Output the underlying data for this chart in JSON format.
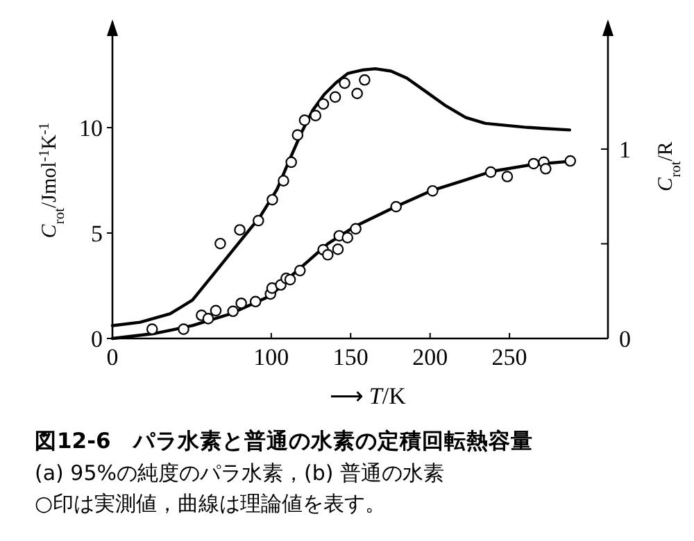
{
  "chart_data": {
    "type": "line",
    "title": "図12-6　パラ水素と普通の水素の定積回転熱容量",
    "annotations": [
      "(a) 95%の純度のパラ水素，(b) 普通の水素",
      "○印は実測値，曲線は理論値を表す。"
    ],
    "xlabel": "⟶ *T*/K",
    "ylabel": "*C*$_{rot}$/Jmol$^{-1}$K$^{-1}$",
    "y2label": "*C*$_{rot}$/R",
    "xlim": [
      0,
      312
    ],
    "ylim": [
      0,
      15
    ],
    "y2lim": [
      0,
      1.67
    ],
    "xticks": [
      0,
      100,
      150,
      200,
      250
    ],
    "yticks": [
      0,
      5,
      10
    ],
    "y2ticks": [
      0,
      {
        "value": 0.5,
        "label": null
      },
      1
    ],
    "series": [
      {
        "type": "line",
        "color": "#000000",
        "x": [
          0,
          17.4,
          36.3,
          50.4,
          64.6,
          78.7,
          92.9,
          103.7,
          111.1,
          118.7,
          126.0,
          133.4,
          140.8,
          148.2,
          158.1,
          165.5,
          175.4,
          185.3,
          197.7,
          210.0,
          222.4,
          234.8,
          247.1,
          259.5,
          271.8,
          287.9
        ],
        "values": [
          0.61,
          0.77,
          1.17,
          1.82,
          3.14,
          4.45,
          5.77,
          7.08,
          8.4,
          9.71,
          10.81,
          11.58,
          12.13,
          12.57,
          12.74,
          12.79,
          12.68,
          12.35,
          11.69,
          11.03,
          10.48,
          10.2,
          10.11,
          10.02,
          9.96,
          9.89
        ]
      },
      {
        "type": "scatter",
        "marker": "circle",
        "color": "#000000",
        "x": [
          67.9,
          80.2,
          91.9,
          100.7,
          107.7,
          112.6,
          116.6,
          121.0,
          127.9,
          132.8,
          140.3,
          146.2,
          154.1,
          158.8
        ],
        "values": [
          4.5,
          5.15,
          5.59,
          6.58,
          7.48,
          8.36,
          9.65,
          10.35,
          10.57,
          11.12,
          11.45,
          12.11,
          11.62,
          12.26
        ]
      },
      {
        "type": "line",
        "color": "#000000",
        "x": [
          0,
          26.9,
          50.4,
          74.0,
          100,
          111.1,
          123.4,
          135.8,
          153.1,
          178.3,
          201.3,
          222.4,
          238.5,
          264.4,
          287.9
        ],
        "values": [
          0,
          0.24,
          0.61,
          1.16,
          2.04,
          2.87,
          3.68,
          4.5,
          5.33,
          6.25,
          7.02,
          7.52,
          7.92,
          8.25,
          8.4
        ]
      },
      {
        "type": "scatter",
        "marker": "circle",
        "color": "#000000",
        "x": [
          25.0,
          44.8,
          56.1,
          60.3,
          65.1,
          75.9,
          81.1,
          90.1,
          99.5,
          100.5,
          106.0,
          109.4,
          111.9,
          118.1,
          132.7,
          135.6,
          142.8,
          142.0,
          148.0,
          153.2,
          178.6,
          201.6,
          238.2,
          248.6,
          265.2,
          271.6,
          272.8,
          288.3
        ],
        "values": [
          0.44,
          0.44,
          1.1,
          0.94,
          1.32,
          1.29,
          1.67,
          1.75,
          2.11,
          2.39,
          2.54,
          2.85,
          2.79,
          3.22,
          4.21,
          3.97,
          4.87,
          4.23,
          4.78,
          5.2,
          6.25,
          7.0,
          7.89,
          7.68,
          8.29,
          8.36,
          8.05,
          8.42
        ]
      }
    ]
  }
}
